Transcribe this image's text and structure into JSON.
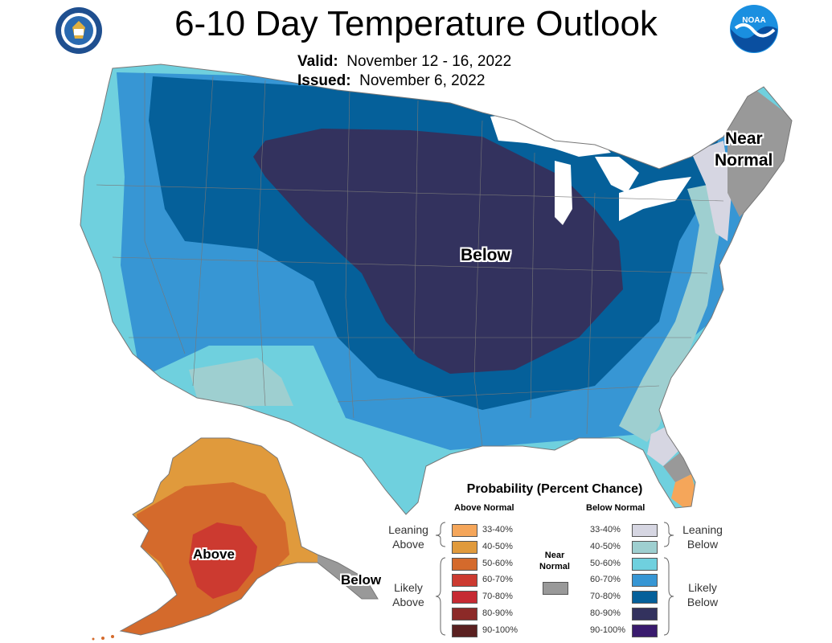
{
  "title": "6-10 Day Temperature Outlook",
  "valid_label": "Valid:",
  "valid_value": "November 12 - 16, 2022",
  "issued_label": "Issued:",
  "issued_value": "November 6, 2022",
  "map_labels": {
    "below": "Below",
    "near_normal_1": "Near",
    "near_normal_2": "Normal",
    "alaska_above": "Above",
    "alaska_below": "Below"
  },
  "legend": {
    "title": "Probability (Percent Chance)",
    "above_head": "Above Normal",
    "below_head": "Below Normal",
    "near_head_1": "Near",
    "near_head_2": "Normal",
    "leaning_above_1": "Leaning",
    "leaning_above_2": "Above",
    "likely_above_1": "Likely",
    "likely_above_2": "Above",
    "leaning_below_1": "Leaning",
    "leaning_below_2": "Below",
    "likely_below_1": "Likely",
    "likely_below_2": "Below",
    "above": [
      {
        "label": "33-40%",
        "color": "#f5a65a"
      },
      {
        "label": "40-50%",
        "color": "#e09a3c"
      },
      {
        "label": "50-60%",
        "color": "#d46a2c"
      },
      {
        "label": "60-70%",
        "color": "#cc3a30"
      },
      {
        "label": "70-80%",
        "color": "#c62a33"
      },
      {
        "label": "80-90%",
        "color": "#8c2a28"
      },
      {
        "label": "90-100%",
        "color": "#5a2020"
      }
    ],
    "below": [
      {
        "label": "33-40%",
        "color": "#d6d6e2"
      },
      {
        "label": "40-50%",
        "color": "#9ecfd0"
      },
      {
        "label": "50-60%",
        "color": "#6fd0de"
      },
      {
        "label": "60-70%",
        "color": "#3796d4"
      },
      {
        "label": "70-80%",
        "color": "#05609a"
      },
      {
        "label": "80-90%",
        "color": "#33325e"
      },
      {
        "label": "90-100%",
        "color": "#3a1b6e"
      }
    ],
    "near_color": "#999999"
  },
  "colors": {
    "below_80_90": "#33325e",
    "below_70_80": "#05609a",
    "below_60_70": "#3796d4",
    "below_50_60": "#6fd0de",
    "below_40_50": "#9ecfd0",
    "below_33_40": "#d6d6e2",
    "near": "#999999",
    "above_33_40": "#f5a65a",
    "above_40_50": "#e09a3c",
    "above_50_60": "#d46a2c",
    "above_60_70": "#cc3a30"
  },
  "icons": {
    "doc_seal": "commerce-seal-icon",
    "noaa": "noaa-logo-icon"
  }
}
